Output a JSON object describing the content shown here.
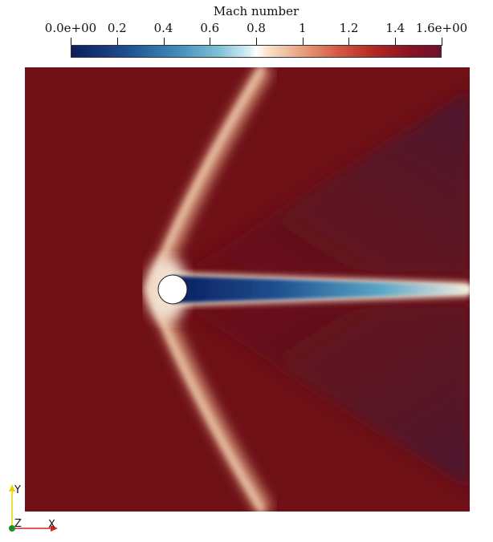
{
  "colorbar": {
    "title": "Mach number",
    "ticks": [
      {
        "label": "0.0e+00",
        "value": 0.0
      },
      {
        "label": "0.2",
        "value": 0.2
      },
      {
        "label": "0.4",
        "value": 0.4
      },
      {
        "label": "0.6",
        "value": 0.6
      },
      {
        "label": "0.8",
        "value": 0.8
      },
      {
        "label": "1",
        "value": 1.0
      },
      {
        "label": "1.2",
        "value": 1.2
      },
      {
        "label": "1.4",
        "value": 1.4
      },
      {
        "label": "1.6e+00",
        "value": 1.6
      }
    ],
    "range": [
      0.0,
      1.6
    ],
    "colors": {
      "low": "#0b1d5e",
      "mid": "#ffffff",
      "high": "#6d1130",
      "freestream": "#6e1016"
    }
  },
  "axes_triad": {
    "y_label": "Y",
    "z_label": "Z",
    "x_label": "X",
    "y_color": "#e8d400",
    "x_color": "#d42020",
    "z_color": "#1a8f2a"
  }
}
